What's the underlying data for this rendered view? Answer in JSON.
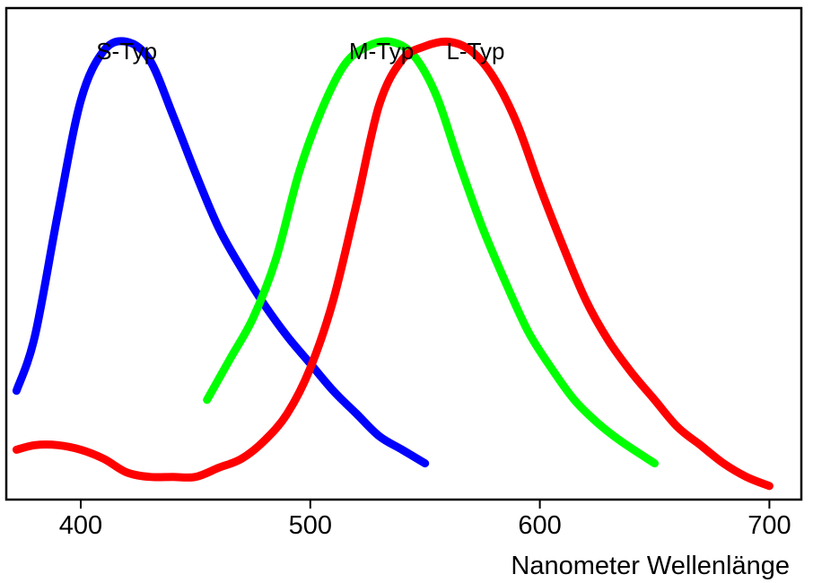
{
  "chart_data": {
    "type": "line",
    "xlabel": "Nanometer Wellenlänge",
    "ylabel": "",
    "xlim": [
      370,
      710
    ],
    "ylim": [
      0,
      1.15
    ],
    "xticks": [
      "400",
      "500",
      "600",
      "700"
    ],
    "grid": false,
    "series": [
      {
        "name": "S-Typ",
        "color": "#0000ff",
        "x": [
          372,
          380,
          390,
          400,
          410,
          420,
          430,
          440,
          450,
          460,
          470,
          480,
          490,
          500,
          510,
          520,
          530,
          540,
          550
        ],
        "y": [
          0.24,
          0.36,
          0.63,
          0.88,
          0.99,
          1.01,
          0.97,
          0.85,
          0.72,
          0.6,
          0.51,
          0.43,
          0.36,
          0.3,
          0.24,
          0.19,
          0.14,
          0.11,
          0.08
        ]
      },
      {
        "name": "M-Typ",
        "color": "#00ff00",
        "x": [
          455,
          465,
          475,
          485,
          495,
          505,
          515,
          525,
          535,
          545,
          555,
          565,
          575,
          585,
          595,
          605,
          615,
          625,
          635,
          650
        ],
        "y": [
          0.22,
          0.31,
          0.4,
          0.53,
          0.72,
          0.86,
          0.96,
          1.0,
          1.01,
          0.98,
          0.89,
          0.74,
          0.6,
          0.48,
          0.37,
          0.29,
          0.22,
          0.17,
          0.13,
          0.08
        ]
      },
      {
        "name": "L-Typ",
        "color": "#ff0000",
        "x": [
          372,
          380,
          390,
          400,
          410,
          420,
          430,
          440,
          450,
          460,
          470,
          480,
          490,
          500,
          510,
          520,
          530,
          540,
          550,
          560,
          570,
          580,
          590,
          600,
          610,
          620,
          630,
          640,
          650,
          660,
          670,
          680,
          690,
          700
        ],
        "y": [
          0.11,
          0.12,
          0.12,
          0.11,
          0.09,
          0.06,
          0.05,
          0.05,
          0.05,
          0.07,
          0.09,
          0.13,
          0.19,
          0.29,
          0.44,
          0.65,
          0.87,
          0.97,
          1.0,
          1.01,
          0.99,
          0.93,
          0.83,
          0.69,
          0.56,
          0.44,
          0.35,
          0.28,
          0.22,
          0.16,
          0.12,
          0.08,
          0.05,
          0.03
        ]
      }
    ],
    "annotations": [
      {
        "text": "S-Typ",
        "x": 420,
        "y": 1.1
      },
      {
        "text": "M-Typ",
        "x": 531,
        "y": 1.1
      },
      {
        "text": "L-Typ",
        "x": 572,
        "y": 1.1
      }
    ]
  }
}
